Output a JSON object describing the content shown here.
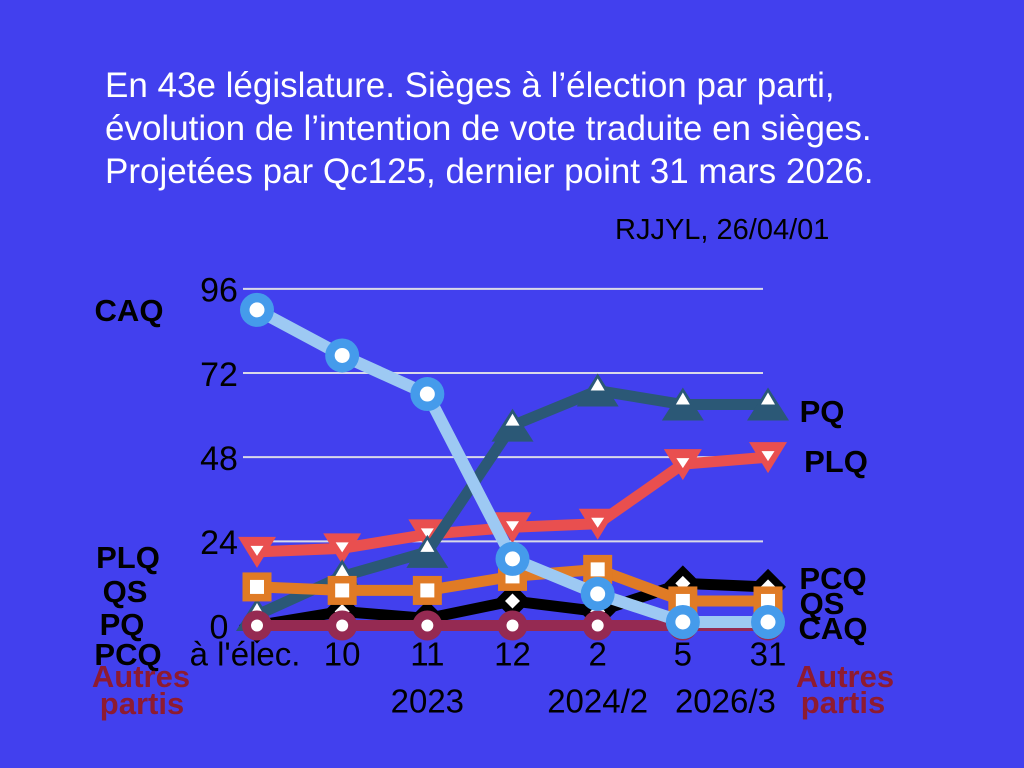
{
  "slide": {
    "background_color": "#4240EE",
    "title_lines": [
      "En 43e législature. Sièges à l’élection par parti,",
      "évolution de l’intention de vote traduite en sièges.",
      "Projetées par Qc125, dernier point 31 mars 2026."
    ],
    "watermark": "RJJYL, 26/04/01"
  },
  "chart_data": {
    "type": "line",
    "title": "Sièges à l'élection par parti, évolution de l'intention de vote traduite en sièges (Qc125)",
    "x_tick_labels": [
      "à l'élec.",
      "10",
      "11",
      "12",
      "2",
      "5",
      "31"
    ],
    "x_sub_labels": [
      {
        "text": "2023",
        "tick_index": 2
      },
      {
        "text": "2024/2",
        "tick_index": 4
      },
      {
        "text": "2026/3",
        "tick_index": 5.5
      }
    ],
    "y_ticks": [
      0,
      24,
      48,
      72,
      96
    ],
    "ylim": [
      0,
      96
    ],
    "grid": "horizontal",
    "grid_color": "#D9D9E8",
    "series": [
      {
        "name": "PCQ",
        "color": "#000000",
        "marker": "diamond",
        "values": [
          0,
          4,
          2,
          7,
          4,
          12,
          11
        ]
      },
      {
        "name": "PLQ",
        "color": "#E94F4F",
        "marker": "triangle-down",
        "values": [
          21,
          22,
          26,
          28,
          29,
          46,
          48
        ]
      },
      {
        "name": "PQ",
        "color": "#2B5876",
        "marker": "triangle-up",
        "values": [
          3,
          14,
          21,
          57,
          67,
          63,
          63
        ]
      },
      {
        "name": "QS",
        "color": "#E07B25",
        "marker": "square",
        "values": [
          11,
          10,
          10,
          14,
          16,
          7,
          7
        ]
      },
      {
        "name": "Autres partis",
        "color": "#952A52",
        "marker": "circle",
        "values": [
          0,
          0,
          0,
          0,
          0,
          0,
          0
        ]
      },
      {
        "name": "CAQ",
        "color": "#459BEB",
        "line_color": "#9DC9F3",
        "marker_color": "#459BEB",
        "marker": "circle",
        "values": [
          90,
          77,
          66,
          19,
          9,
          1,
          1
        ]
      }
    ],
    "left_labels": [
      {
        "text": "CAQ",
        "color": "#000000"
      },
      {
        "text": "PLQ",
        "color": "#000000"
      },
      {
        "text": "QS",
        "color": "#000000"
      },
      {
        "text": "PQ",
        "color": "#000000"
      },
      {
        "text": "PCQ",
        "color": "#000000"
      },
      {
        "text": "Autres",
        "color": "#8E1B31"
      },
      {
        "text": "partis",
        "color": "#8E1B31"
      }
    ],
    "right_labels": [
      {
        "text": "PQ",
        "color": "#000000"
      },
      {
        "text": "PLQ",
        "color": "#000000"
      },
      {
        "text": "PCQ",
        "color": "#000000"
      },
      {
        "text": "QS",
        "color": "#000000"
      },
      {
        "text": "CAQ",
        "color": "#000000"
      },
      {
        "text": "Autres",
        "color": "#8E1B31"
      },
      {
        "text": "partis",
        "color": "#8E1B31"
      }
    ]
  }
}
